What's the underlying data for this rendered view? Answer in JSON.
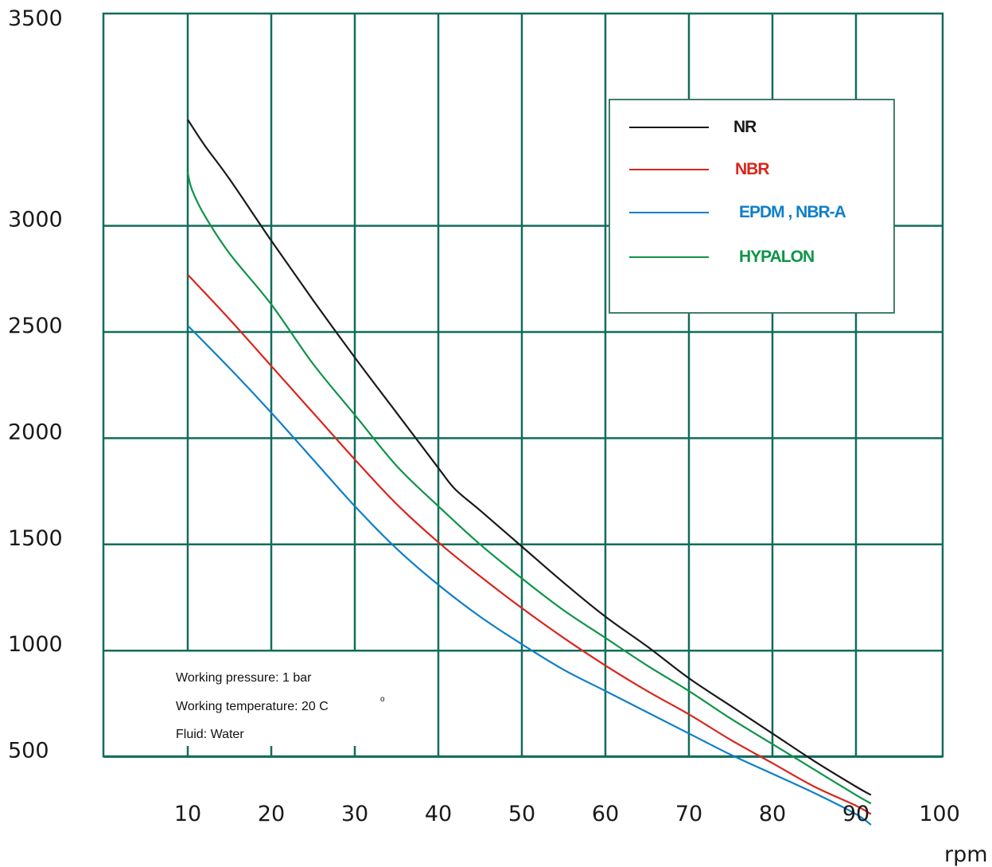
{
  "chart_data": {
    "type": "line",
    "title": "",
    "xlabel": "rpm",
    "ylabel": "",
    "xlim": [
      0,
      100
    ],
    "ylim": [
      0,
      3500
    ],
    "x_ticks": [
      "10",
      "20",
      "30",
      "40",
      "50",
      "60",
      "70",
      "80",
      "90",
      "100"
    ],
    "y_ticks": [
      "500",
      "1000",
      "1500",
      "2000",
      "2500",
      "3000",
      "3500"
    ],
    "grid": true,
    "grid_color": "#116d5a",
    "legend_position": "top-right",
    "series": [
      {
        "name": "NR",
        "color": "#1a1a1a",
        "x": [
          10,
          12,
          15,
          20,
          25,
          30,
          35,
          40,
          42,
          45,
          50,
          55,
          60,
          65,
          70,
          75,
          80,
          85,
          90,
          91.8
        ],
        "y": [
          3500,
          3380,
          3220,
          2930,
          2650,
          2380,
          2120,
          1860,
          1760,
          1660,
          1490,
          1320,
          1160,
          1020,
          870,
          740,
          610,
          480,
          360,
          320
        ]
      },
      {
        "name": "NBR",
        "color": "#d8261d",
        "x": [
          10,
          15,
          20,
          25,
          30,
          35,
          40,
          45,
          50,
          55,
          60,
          65,
          70,
          75,
          80,
          85,
          90,
          91.8
        ],
        "y": [
          2770,
          2560,
          2340,
          2120,
          1900,
          1690,
          1510,
          1350,
          1200,
          1060,
          930,
          810,
          700,
          580,
          470,
          360,
          270,
          230
        ]
      },
      {
        "name": "EPDM , NBR-A",
        "color": "#0e7fc8",
        "x": [
          10,
          15,
          20,
          25,
          30,
          35,
          40,
          45,
          50,
          55,
          60,
          65,
          70,
          75,
          80,
          85,
          90,
          91.8
        ],
        "y": [
          2530,
          2330,
          2120,
          1900,
          1680,
          1480,
          1310,
          1160,
          1030,
          910,
          810,
          710,
          610,
          510,
          420,
          330,
          230,
          180
        ]
      },
      {
        "name": "HYPALON",
        "color": "#0f9447",
        "x": [
          10,
          10.5,
          12,
          15,
          20,
          25,
          30,
          35,
          40,
          45,
          50,
          55,
          60,
          65,
          70,
          75,
          80,
          85,
          90,
          91.8
        ],
        "y": [
          3250,
          3170,
          3050,
          2870,
          2630,
          2350,
          2110,
          1870,
          1680,
          1500,
          1340,
          1190,
          1060,
          930,
          810,
          680,
          560,
          440,
          320,
          280
        ]
      }
    ],
    "annotations": [
      "Working pressure: 1 bar",
      "Working temperature: 20 C",
      "Fluid: Water"
    ],
    "annotation_superscript": "o"
  }
}
